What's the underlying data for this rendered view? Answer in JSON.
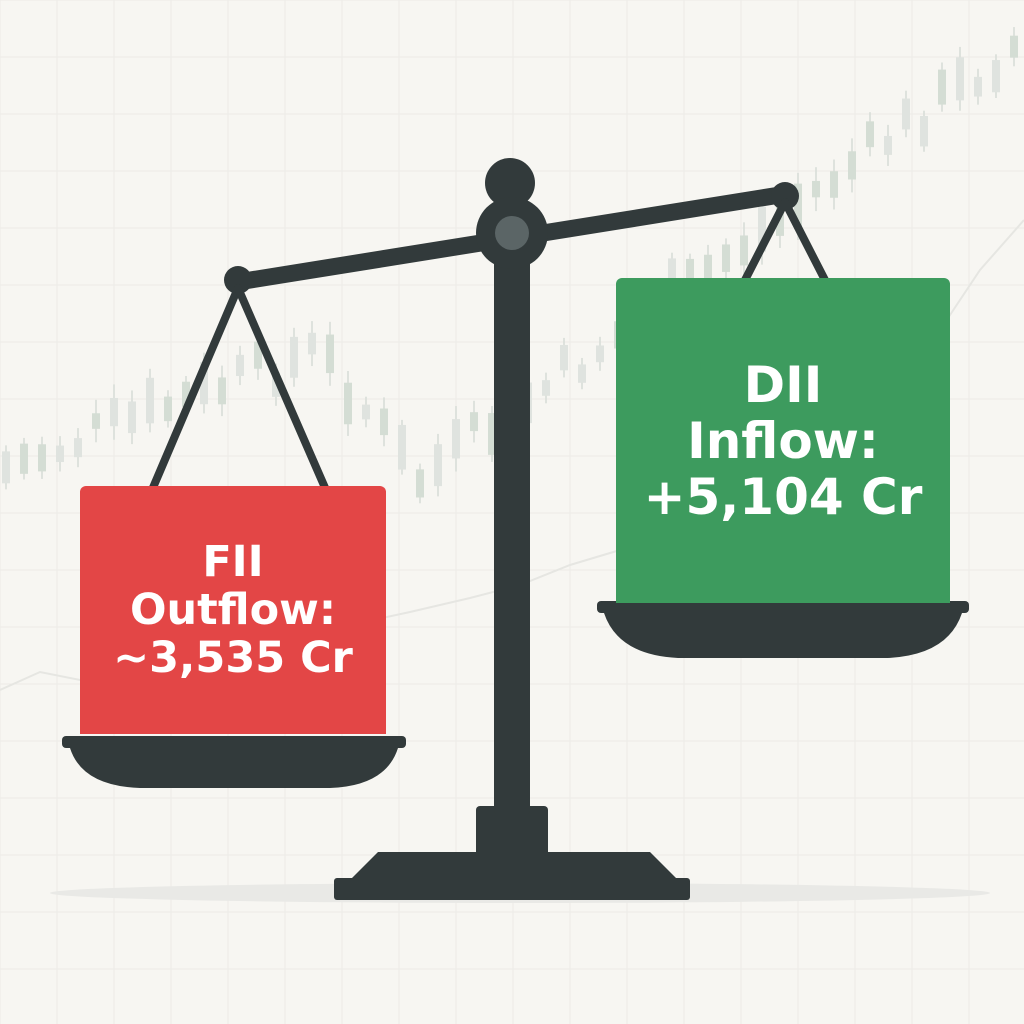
{
  "left_pan": {
    "line1": "FII",
    "line2": "Outflow:",
    "line3": "~3,535 Cr",
    "color": "#e34646"
  },
  "right_pan": {
    "line1": "DII",
    "line2": "Inflow:",
    "line3": "+5,104 Cr",
    "color": "#3d9b5e"
  },
  "scale": {
    "color": "#323a3b"
  }
}
